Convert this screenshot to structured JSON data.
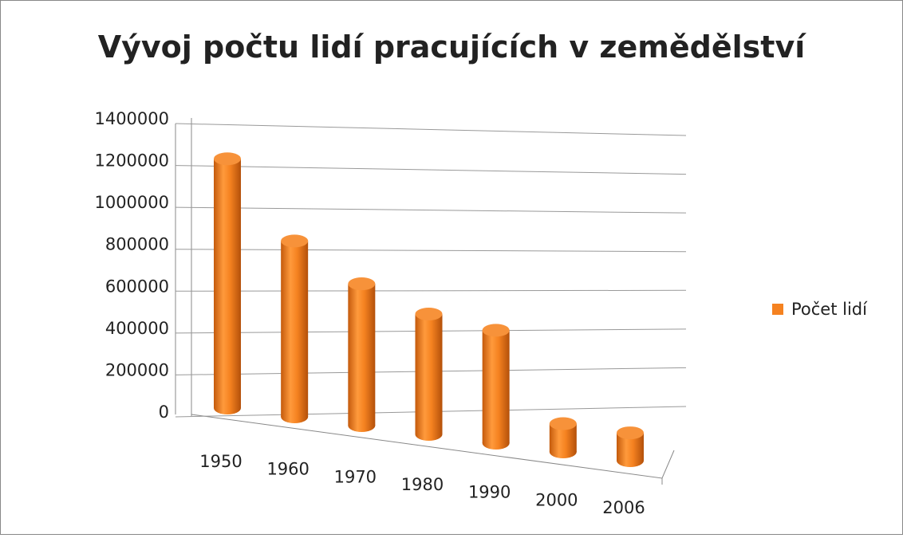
{
  "chart_data": {
    "type": "bar3d",
    "title": "Vývoj počtu lidí pracujících v zemědělství",
    "categories": [
      "1950",
      "1960",
      "1970",
      "1980",
      "1990",
      "2000",
      "2006"
    ],
    "series": [
      {
        "name": "Počet lidí",
        "color": "#f58220",
        "values": [
          1230000,
          880000,
          720000,
          620000,
          590000,
          150000,
          150000
        ]
      }
    ],
    "ylim": [
      0,
      1400000
    ],
    "yticks": [
      0,
      200000,
      400000,
      600000,
      800000,
      1000000,
      1200000,
      1400000
    ],
    "grid": true,
    "legend": "right"
  }
}
